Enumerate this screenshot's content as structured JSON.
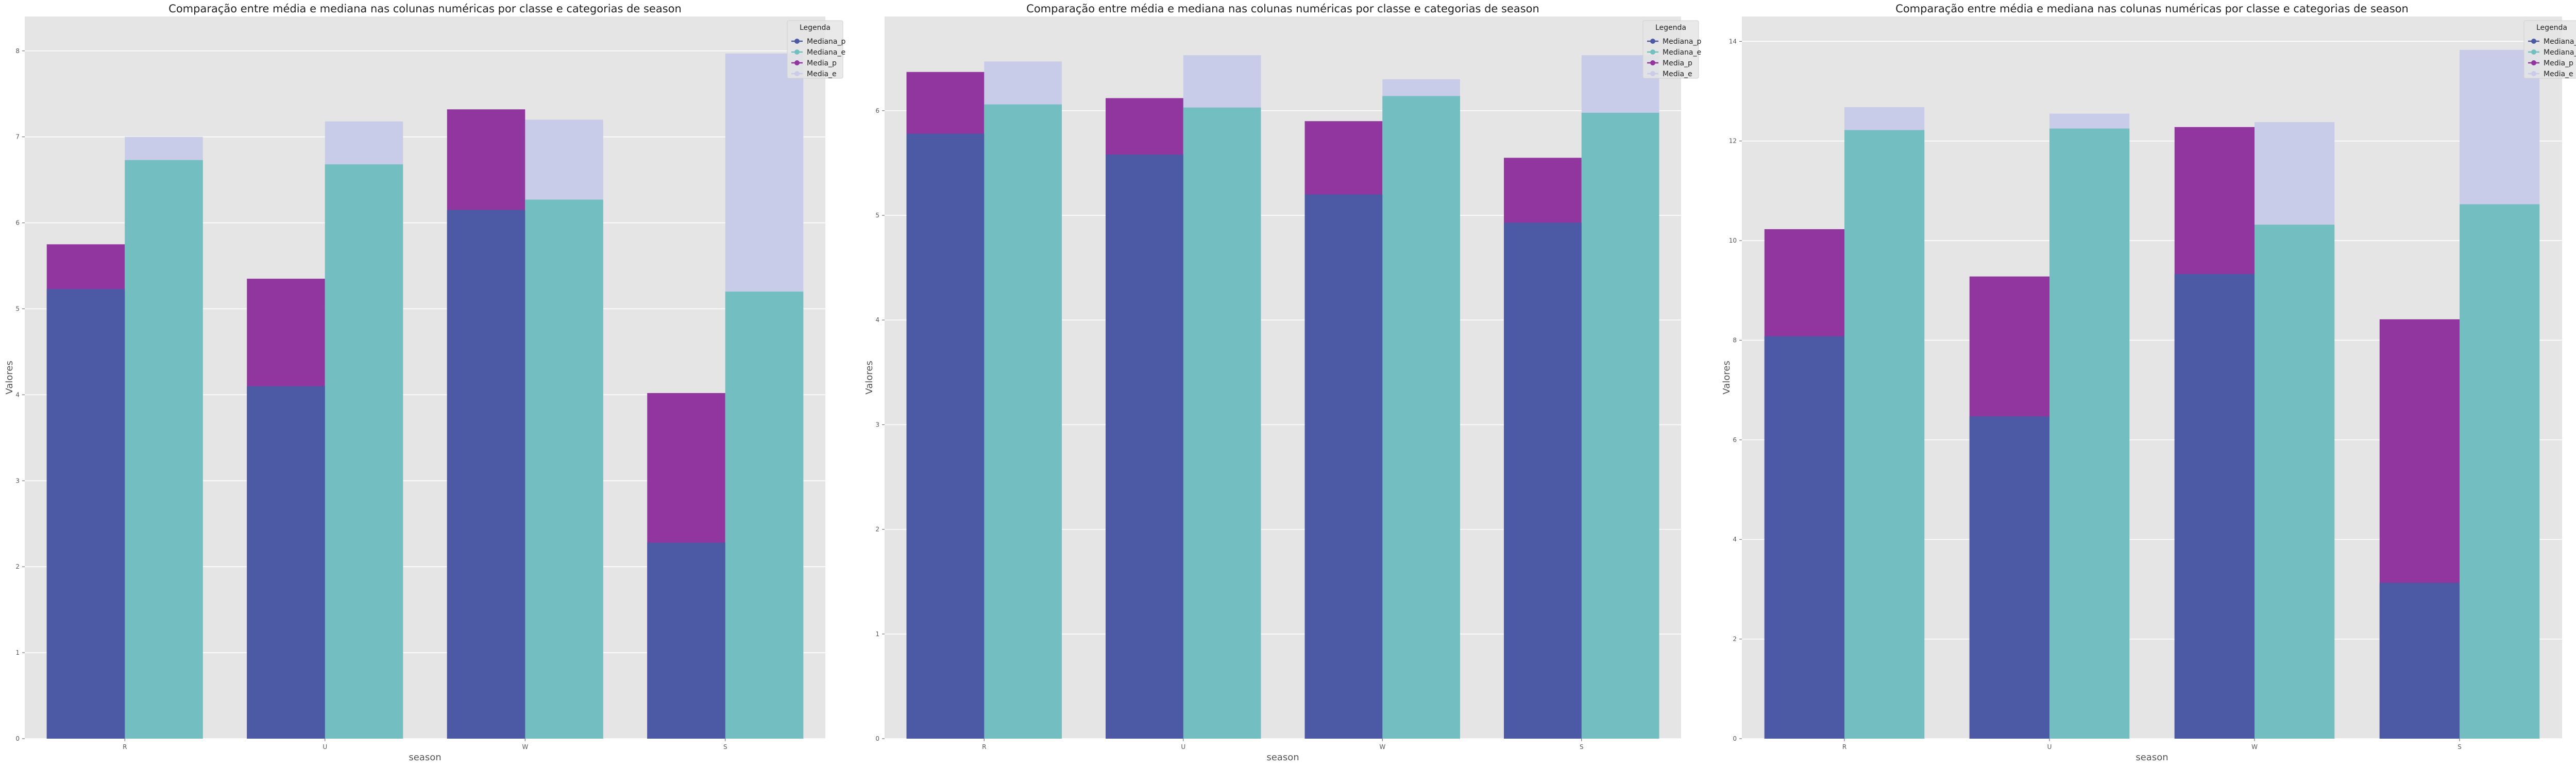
{
  "chart_data": [
    {
      "type": "bar",
      "title": "Comparação entre média e mediana nas colunas numéricas por classe e categorias de season",
      "xlabel": "season",
      "ylabel": "Valores",
      "categories": [
        "R",
        "U",
        "W",
        "S"
      ],
      "ylim": [
        0,
        8.4
      ],
      "yticks": [
        0,
        1,
        2,
        3,
        4,
        5,
        6,
        7,
        8
      ],
      "grid": true,
      "legend_title": "Legenda",
      "legend_position": "top-right",
      "series": [
        {
          "name": "Mediana_p",
          "color": "#4c5aa6",
          "values": [
            5.23,
            4.1,
            6.15,
            2.28
          ]
        },
        {
          "name": "Mediana_e",
          "color": "#73bec0",
          "values": [
            6.73,
            6.68,
            6.27,
            5.2
          ]
        },
        {
          "name": "Media_p",
          "color": "#91359f",
          "values": [
            5.75,
            5.35,
            7.32,
            4.02
          ]
        },
        {
          "name": "Media_e",
          "color": "#c9cce8",
          "values": [
            7.0,
            7.18,
            7.2,
            7.97
          ]
        }
      ]
    },
    {
      "type": "bar",
      "title": "Comparação entre média e mediana nas colunas numéricas por classe e categorias de season",
      "xlabel": "season",
      "ylabel": "Valores",
      "categories": [
        "R",
        "U",
        "W",
        "S"
      ],
      "ylim": [
        0,
        6.9
      ],
      "yticks": [
        0,
        1,
        2,
        3,
        4,
        5,
        6
      ],
      "grid": true,
      "legend_title": "Legenda",
      "legend_position": "top-right",
      "series": [
        {
          "name": "Mediana_p",
          "color": "#4c5aa6",
          "values": [
            5.78,
            5.58,
            5.2,
            4.93
          ]
        },
        {
          "name": "Mediana_e",
          "color": "#73bec0",
          "values": [
            6.06,
            6.03,
            6.14,
            5.98
          ]
        },
        {
          "name": "Media_p",
          "color": "#91359f",
          "values": [
            6.37,
            6.12,
            5.9,
            5.55
          ]
        },
        {
          "name": "Media_e",
          "color": "#c9cce8",
          "values": [
            6.47,
            6.53,
            6.3,
            6.53
          ]
        }
      ]
    },
    {
      "type": "bar",
      "title": "Comparação entre média e mediana nas colunas numéricas por classe e categorias de season",
      "xlabel": "season",
      "ylabel": "Valores",
      "categories": [
        "R",
        "U",
        "W",
        "S"
      ],
      "ylim": [
        0,
        14.5
      ],
      "yticks": [
        0,
        2,
        4,
        6,
        8,
        10,
        12,
        14
      ],
      "grid": true,
      "legend_title": "Legenda",
      "legend_position": "top-right",
      "series": [
        {
          "name": "Mediana_p",
          "color": "#4c5aa6",
          "values": [
            8.08,
            6.47,
            9.33,
            3.13
          ]
        },
        {
          "name": "Mediana_e",
          "color": "#73bec0",
          "values": [
            12.22,
            12.25,
            10.32,
            10.73
          ]
        },
        {
          "name": "Media_p",
          "color": "#91359f",
          "values": [
            10.23,
            9.28,
            12.28,
            8.42
          ]
        },
        {
          "name": "Media_e",
          "color": "#c9cce8",
          "values": [
            12.68,
            12.55,
            12.38,
            13.83
          ]
        }
      ]
    }
  ]
}
